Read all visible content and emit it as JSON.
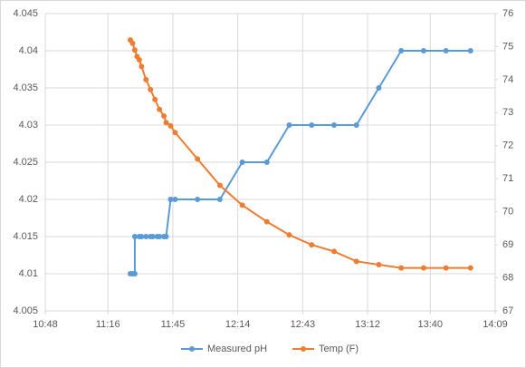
{
  "chart_data": {
    "type": "line",
    "xlim": [
      "10:48",
      "14:09"
    ],
    "xticks": [
      "10:48",
      "11:16",
      "11:45",
      "12:14",
      "12:43",
      "13:12",
      "13:40",
      "14:09"
    ],
    "ylim": [
      4.005,
      4.045
    ],
    "yticks": [
      4.005,
      4.01,
      4.015,
      4.02,
      4.025,
      4.03,
      4.035,
      4.04,
      4.045
    ],
    "y2lim": [
      67,
      76
    ],
    "y2ticks": [
      67,
      68,
      69,
      70,
      71,
      72,
      73,
      74,
      75,
      76
    ],
    "grid": true,
    "legend": "bottom",
    "series": [
      {
        "name": "Measured pH",
        "color": "#5b9bd5",
        "x": [
          "11:26",
          "11:27",
          "11:28",
          "11:28",
          "11:30",
          "11:31",
          "11:33",
          "11:35",
          "11:36",
          "11:38",
          "11:39",
          "11:41",
          "11:42",
          "11:44",
          "11:46",
          "11:56",
          "12:06",
          "12:16",
          "12:27",
          "12:37",
          "12:47",
          "12:57",
          "13:07",
          "13:17",
          "13:27",
          "13:37",
          "13:47",
          "13:58"
        ],
        "values": [
          4.01,
          4.01,
          4.01,
          4.015,
          4.015,
          4.015,
          4.015,
          4.015,
          4.015,
          4.015,
          4.015,
          4.015,
          4.015,
          4.02,
          4.02,
          4.02,
          4.02,
          4.025,
          4.025,
          4.03,
          4.03,
          4.03,
          4.03,
          4.035,
          4.04,
          4.04,
          4.04,
          4.04
        ]
      },
      {
        "name": "Temp (F)",
        "color": "#ed7d31",
        "axis": "y2",
        "x": [
          "11:26",
          "11:27",
          "11:28",
          "11:29",
          "11:30",
          "11:31",
          "11:33",
          "11:35",
          "11:37",
          "11:39",
          "11:41",
          "11:42",
          "11:44",
          "11:46",
          "11:56",
          "12:06",
          "12:16",
          "12:27",
          "12:37",
          "12:47",
          "12:57",
          "13:07",
          "13:17",
          "13:27",
          "13:37",
          "13:47",
          "13:58"
        ],
        "values": [
          75.2,
          75.1,
          74.9,
          74.7,
          74.6,
          74.4,
          74.0,
          73.7,
          73.4,
          73.1,
          72.9,
          72.7,
          72.6,
          72.4,
          71.6,
          70.8,
          70.2,
          69.7,
          69.3,
          69.0,
          68.8,
          68.5,
          68.4,
          68.3,
          68.3,
          68.3,
          68.3
        ]
      }
    ]
  }
}
